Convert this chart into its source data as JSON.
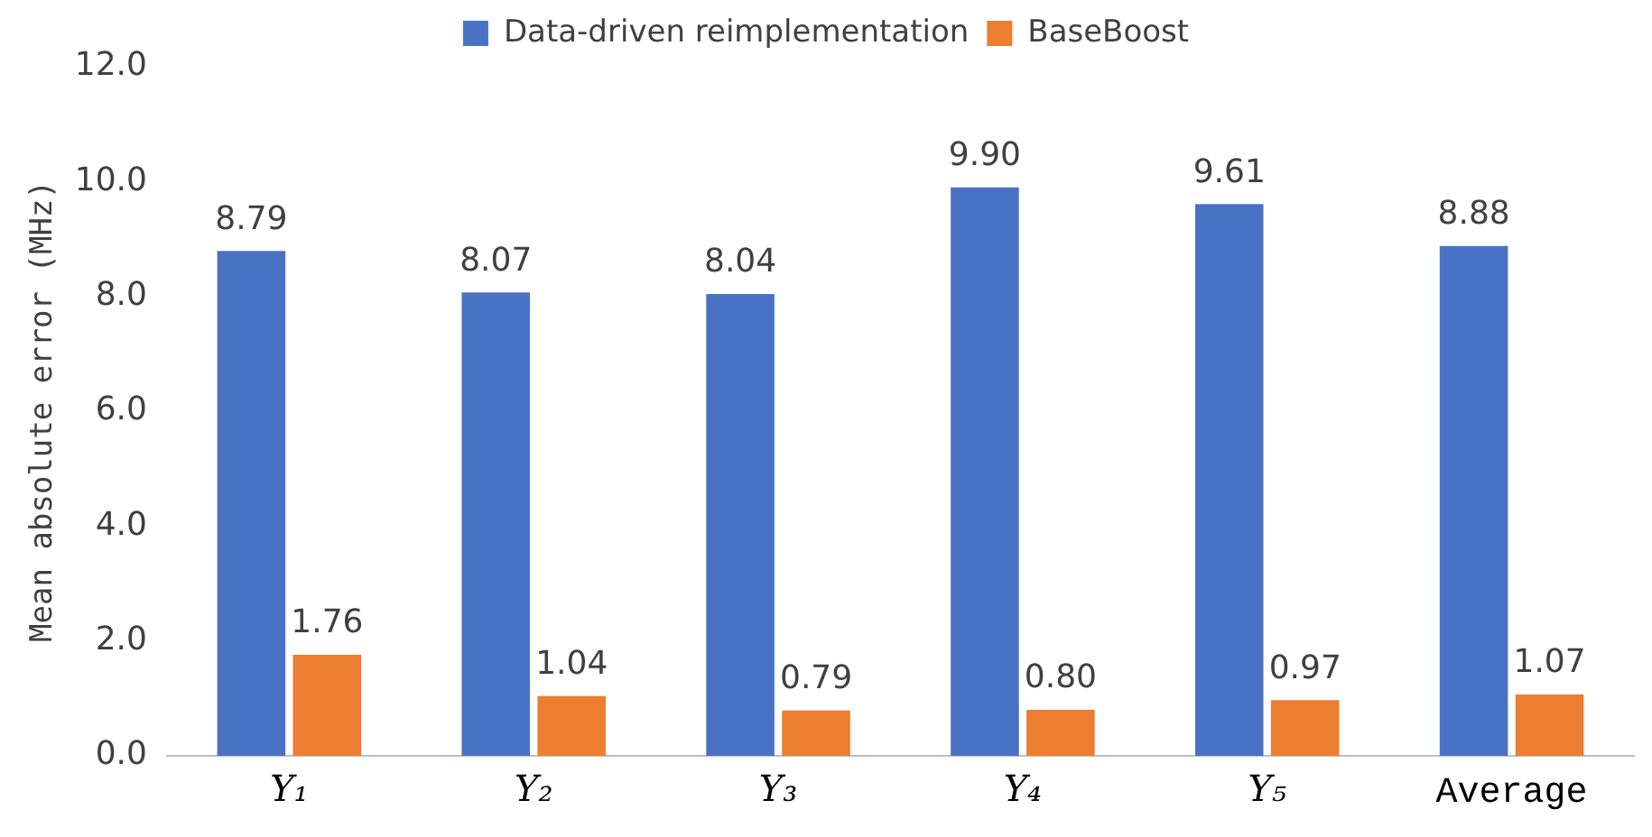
{
  "chart_data": {
    "type": "bar",
    "ylabel": "Mean absolute error (MHz)",
    "categories": [
      "Y₁",
      "Y₂",
      "Y₃",
      "Y₄",
      "Y₅",
      "Average"
    ],
    "series": [
      {
        "name": "Data-driven reimplementation",
        "color": "#4a72c4",
        "values": [
          8.79,
          8.07,
          8.04,
          9.9,
          9.61,
          8.88
        ],
        "value_labels": [
          "8.79",
          "8.07",
          "8.04",
          "9.90",
          "9.61",
          "8.88"
        ]
      },
      {
        "name": "BaseBoost",
        "color": "#ed7d31",
        "values": [
          1.76,
          1.04,
          0.79,
          0.8,
          0.97,
          1.07
        ],
        "value_labels": [
          "1.76",
          "1.04",
          "0.79",
          "0.80",
          "0.97",
          "1.07"
        ]
      }
    ],
    "ylim": [
      0,
      12
    ],
    "yticks": [
      {
        "value": 0,
        "label": "0.0"
      },
      {
        "value": 2,
        "label": "2.0"
      },
      {
        "value": 4,
        "label": "4.0"
      },
      {
        "value": 6,
        "label": "6.0"
      },
      {
        "value": 8,
        "label": "8.0"
      },
      {
        "value": 10,
        "label": "10.0"
      },
      {
        "value": 12,
        "label": "12.0"
      }
    ],
    "grid": false,
    "legend": "top"
  }
}
